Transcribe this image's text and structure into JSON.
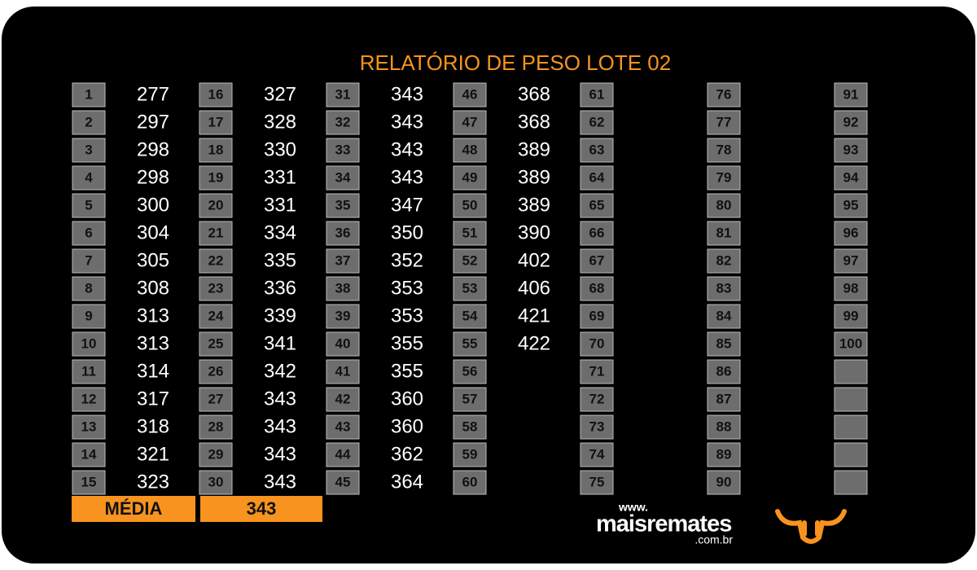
{
  "title": "RELATÓRIO DE PESO LOTE 02",
  "columns": [
    {
      "numbers": [
        1,
        2,
        3,
        4,
        5,
        6,
        7,
        8,
        9,
        10,
        11,
        12,
        13,
        14,
        15
      ],
      "weights": [
        277,
        297,
        298,
        298,
        300,
        304,
        305,
        308,
        313,
        313,
        314,
        317,
        318,
        321,
        323
      ]
    },
    {
      "numbers": [
        16,
        17,
        18,
        19,
        20,
        21,
        22,
        23,
        24,
        25,
        26,
        27,
        28,
        29,
        30
      ],
      "weights": [
        327,
        328,
        330,
        331,
        331,
        334,
        335,
        336,
        339,
        341,
        342,
        343,
        343,
        343,
        343
      ]
    },
    {
      "numbers": [
        31,
        32,
        33,
        34,
        35,
        36,
        37,
        38,
        39,
        40,
        41,
        42,
        43,
        44,
        45
      ],
      "weights": [
        343,
        343,
        343,
        343,
        347,
        350,
        352,
        353,
        353,
        355,
        355,
        360,
        360,
        362,
        364
      ]
    },
    {
      "numbers": [
        46,
        47,
        48,
        49,
        50,
        51,
        52,
        53,
        54,
        55,
        56,
        57,
        58,
        59,
        60
      ],
      "weights": [
        368,
        368,
        389,
        389,
        389,
        390,
        402,
        406,
        421,
        422
      ]
    },
    {
      "numbers": [
        61,
        62,
        63,
        64,
        65,
        66,
        67,
        68,
        69,
        70,
        71,
        72,
        73,
        74,
        75
      ]
    },
    {
      "numbers": [
        76,
        77,
        78,
        79,
        80,
        81,
        82,
        83,
        84,
        85,
        86,
        87,
        88,
        89,
        90
      ]
    },
    {
      "numbers": [
        91,
        92,
        93,
        94,
        95,
        96,
        97,
        98,
        99,
        100
      ]
    }
  ],
  "average": {
    "label": "MÉDIA",
    "value": 343
  },
  "logo": {
    "prefix": "www.",
    "name": "maisremates",
    "suffix": ".com.br"
  }
}
